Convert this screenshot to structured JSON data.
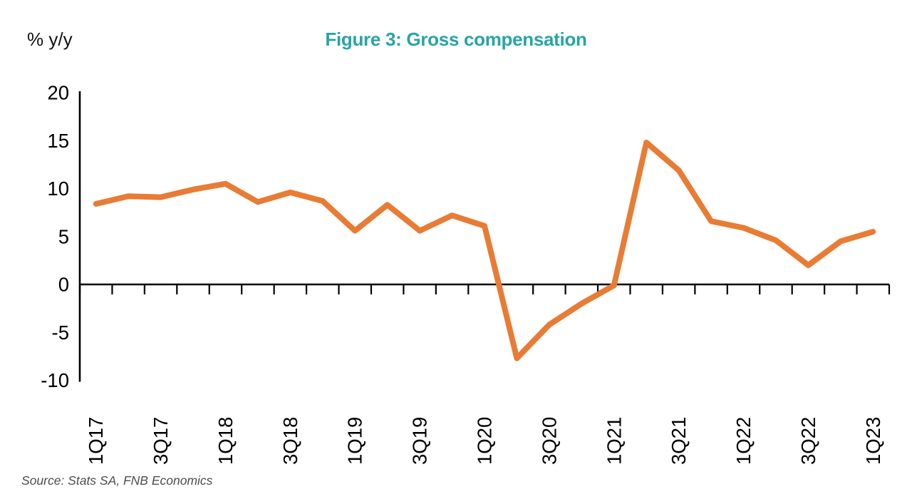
{
  "header": {
    "unit_label": "% y/y",
    "title": "Figure 3: Gross compensation"
  },
  "footer": {
    "source": "Source: Stats SA, FNB Economics"
  },
  "colors": {
    "line": "#E87C35",
    "title": "#28A4A6",
    "axis": "#000000",
    "tick_label": "#000000",
    "source_text": "#4d4d4d"
  },
  "chart_data": {
    "type": "line",
    "title": "Figure 3: Gross compensation",
    "ylabel": "% y/y",
    "xlabel": "",
    "grid": false,
    "legend": "none",
    "ylim": [
      -10,
      20
    ],
    "yticks": [
      20,
      15,
      10,
      5,
      0,
      -5,
      -10
    ],
    "x": [
      "1Q17",
      "2Q17",
      "3Q17",
      "4Q17",
      "1Q18",
      "2Q18",
      "3Q18",
      "4Q18",
      "1Q19",
      "2Q19",
      "3Q19",
      "4Q19",
      "1Q20",
      "2Q20",
      "3Q20",
      "4Q20",
      "1Q21",
      "2Q21",
      "3Q21",
      "4Q21",
      "1Q22",
      "2Q22",
      "3Q22",
      "4Q22",
      "1Q23"
    ],
    "x_tick_labels": [
      "1Q17",
      "3Q17",
      "1Q18",
      "3Q18",
      "1Q19",
      "3Q19",
      "1Q20",
      "3Q20",
      "1Q21",
      "3Q21",
      "1Q22",
      "3Q22",
      "1Q23"
    ],
    "series": [
      {
        "name": "Gross compensation, % y/y",
        "values": [
          8.4,
          9.2,
          9.1,
          9.9,
          10.5,
          8.6,
          9.6,
          8.7,
          5.6,
          8.3,
          5.6,
          7.2,
          6.1,
          -7.7,
          -4.2,
          -2.0,
          -0.1,
          14.8,
          11.9,
          6.6,
          5.9,
          4.6,
          2.0,
          4.5,
          5.5
        ]
      }
    ],
    "source": "Source: Stats SA, FNB Economics"
  }
}
